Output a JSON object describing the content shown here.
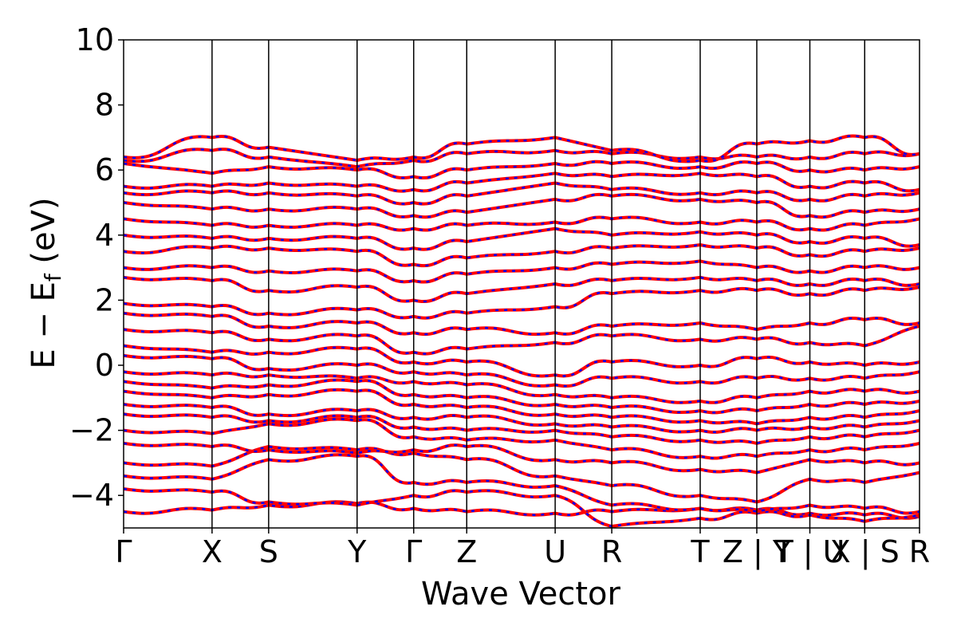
{
  "chart_data": {
    "type": "line",
    "title": "",
    "xlabel": "Wave Vector",
    "ylabel": "E − E_f (eV)",
    "ylabel_main": "E − E",
    "ylabel_sub": "f",
    "ylabel_unit": " (eV)",
    "ylim": [
      -5,
      10
    ],
    "yticks": [
      10,
      8,
      6,
      4,
      2,
      0,
      -2,
      -4
    ],
    "ytick_labels": [
      "10",
      "8",
      "6",
      "4",
      "2",
      "0",
      "−2",
      "−4"
    ],
    "grid": false,
    "kpoints": [
      {
        "label": "Γ",
        "x": 0.0
      },
      {
        "label": "X",
        "x": 1.0
      },
      {
        "label": "S",
        "x": 1.64
      },
      {
        "label": "Y",
        "x": 2.64
      },
      {
        "label": "Γ",
        "x": 3.28
      },
      {
        "label": "Z",
        "x": 3.88
      },
      {
        "label": "U",
        "x": 4.88
      },
      {
        "label": "R",
        "x": 5.52
      },
      {
        "label": "T",
        "x": 6.52
      },
      {
        "label": "Z | Y",
        "x": 7.16
      },
      {
        "label": "T | U",
        "x": 7.76
      },
      {
        "label": "X | S",
        "x": 8.38
      },
      {
        "label": "R",
        "x": 9.0
      }
    ],
    "line_colors": {
      "series_a": "#ff0000",
      "series_b": "#0000ff"
    },
    "bands": [
      [
        -4.5,
        -4.45,
        -4.3,
        -4.25,
        -4.4,
        -4.5,
        -4.55,
        -4.5,
        -4.4,
        -4.45,
        -4.55,
        -4.6,
        -4.65
      ],
      [
        -3.8,
        -3.9,
        -4.2,
        -4.3,
        -4.0,
        -3.9,
        -4.0,
        -4.95,
        -4.7,
        -4.55,
        -4.6,
        -4.8,
        -4.6
      ],
      [
        -3.4,
        -3.5,
        -2.9,
        -2.8,
        -3.6,
        -3.6,
        -3.7,
        -4.3,
        -4.4,
        -4.5,
        -4.3,
        -4.4,
        -4.5
      ],
      [
        -3.0,
        -3.1,
        -2.5,
        -2.6,
        -2.7,
        -2.9,
        -3.4,
        -3.7,
        -4.0,
        -4.2,
        -3.5,
        -3.6,
        -3.3
      ],
      [
        -2.4,
        -2.5,
        -2.6,
        -2.7,
        -2.6,
        -2.5,
        -2.9,
        -3.0,
        -3.2,
        -3.3,
        -2.9,
        -3.0,
        -3.0
      ],
      [
        -2.0,
        -2.1,
        -1.8,
        -1.7,
        -2.2,
        -2.3,
        -2.3,
        -2.6,
        -2.8,
        -2.8,
        -2.6,
        -2.6,
        -2.4
      ],
      [
        -1.5,
        -1.6,
        -1.7,
        -1.6,
        -1.9,
        -2.0,
        -2.0,
        -2.2,
        -2.3,
        -2.4,
        -2.2,
        -2.2,
        -2.0
      ],
      [
        -1.2,
        -1.3,
        -1.5,
        -1.4,
        -1.6,
        -1.6,
        -1.8,
        -1.9,
        -2.0,
        -2.0,
        -1.9,
        -1.9,
        -1.7
      ],
      [
        -0.8,
        -1.0,
        -0.9,
        -0.8,
        -1.2,
        -1.3,
        -1.5,
        -1.6,
        -1.7,
        -1.8,
        -1.6,
        -1.6,
        -1.4
      ],
      [
        -0.5,
        -0.7,
        -0.6,
        -0.5,
        -0.9,
        -1.0,
        -1.2,
        -1.3,
        -1.4,
        -1.4,
        -1.2,
        -1.2,
        -1.1
      ],
      [
        -0.2,
        -0.3,
        -0.3,
        -0.4,
        -0.5,
        -0.6,
        -0.9,
        -1.0,
        -1.1,
        -1.0,
        -0.8,
        -0.8,
        -0.8
      ],
      [
        0.3,
        0.2,
        -0.1,
        0.0,
        -0.2,
        -0.3,
        -0.6,
        -0.4,
        -0.5,
        -0.4,
        -0.4,
        -0.4,
        -0.2
      ],
      [
        0.6,
        0.4,
        0.4,
        0.5,
        0.1,
        0.1,
        -0.3,
        0.1,
        0.0,
        0.2,
        0.1,
        0.0,
        0.1
      ],
      [
        1.1,
        1.0,
        0.8,
        0.9,
        0.4,
        0.5,
        0.7,
        0.9,
        0.8,
        0.8,
        0.7,
        0.6,
        1.2
      ],
      [
        1.6,
        1.5,
        1.2,
        1.3,
        1.0,
        1.1,
        1.0,
        1.2,
        1.3,
        1.1,
        1.3,
        1.4,
        1.3
      ],
      [
        1.9,
        1.8,
        1.6,
        1.7,
        1.5,
        1.6,
        1.8,
        2.2,
        2.3,
        2.3,
        2.2,
        2.3,
        2.4
      ],
      [
        2.7,
        2.6,
        2.3,
        2.4,
        2.0,
        2.2,
        2.5,
        2.6,
        2.7,
        2.6,
        2.5,
        2.6,
        2.5
      ],
      [
        3.0,
        3.0,
        2.9,
        2.9,
        2.6,
        2.8,
        3.0,
        3.1,
        3.2,
        3.0,
        2.9,
        3.0,
        3.0
      ],
      [
        3.5,
        3.6,
        3.6,
        3.5,
        3.1,
        3.3,
        3.5,
        3.6,
        3.7,
        3.6,
        3.4,
        3.5,
        3.6
      ],
      [
        4.0,
        3.9,
        3.9,
        3.9,
        3.6,
        3.8,
        4.2,
        4.0,
        4.1,
        4.0,
        3.8,
        3.9,
        3.7
      ],
      [
        4.5,
        4.3,
        4.3,
        4.3,
        4.2,
        4.3,
        4.4,
        4.5,
        4.4,
        4.4,
        4.2,
        4.3,
        4.5
      ],
      [
        5.0,
        4.8,
        4.8,
        4.8,
        4.6,
        4.7,
        5.1,
        5.2,
        5.1,
        5.0,
        4.6,
        4.7,
        4.8
      ],
      [
        5.3,
        5.3,
        5.3,
        5.2,
        5.0,
        5.2,
        5.6,
        5.4,
        5.3,
        5.3,
        5.1,
        5.2,
        5.3
      ],
      [
        5.5,
        5.5,
        5.6,
        5.5,
        5.4,
        5.6,
        5.9,
        5.8,
        5.9,
        5.8,
        5.5,
        5.6,
        5.4
      ],
      [
        6.2,
        5.9,
        6.1,
        6.0,
        5.8,
        6.0,
        6.2,
        6.2,
        6.1,
        6.2,
        6.0,
        6.0,
        6.1
      ],
      [
        6.3,
        6.6,
        6.4,
        6.1,
        6.3,
        6.5,
        6.6,
        6.5,
        6.4,
        6.4,
        6.4,
        6.5,
        6.5
      ],
      [
        6.4,
        7.0,
        6.7,
        6.3,
        6.4,
        6.8,
        7.0,
        6.6,
        6.3,
        6.8,
        6.9,
        7.0,
        6.5
      ]
    ]
  }
}
